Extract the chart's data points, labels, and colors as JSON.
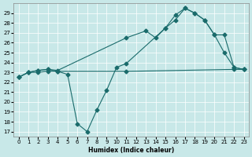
{
  "xlabel": "Humidex (Indice chaleur)",
  "bg_color": "#c8e8e8",
  "line_color": "#1a6b6b",
  "xlim": [
    -0.5,
    23.5
  ],
  "ylim": [
    16.5,
    30.0
  ],
  "xticks": [
    0,
    1,
    2,
    3,
    4,
    5,
    6,
    7,
    8,
    9,
    10,
    11,
    12,
    13,
    14,
    15,
    16,
    17,
    18,
    19,
    20,
    21,
    22,
    23
  ],
  "yticks": [
    17,
    18,
    19,
    20,
    21,
    22,
    23,
    24,
    25,
    26,
    27,
    28,
    29
  ],
  "series_flat_x": [
    0,
    1,
    2,
    3,
    4,
    11,
    22,
    23
  ],
  "series_flat_y": [
    22.5,
    23.0,
    23.0,
    23.1,
    23.1,
    23.1,
    23.3,
    23.3
  ],
  "series_high_x": [
    0,
    1,
    2,
    3,
    4,
    11,
    13,
    14,
    15,
    16,
    17,
    18,
    19,
    20,
    21,
    22,
    23
  ],
  "series_high_y": [
    22.5,
    23.0,
    23.2,
    23.3,
    23.2,
    26.5,
    27.2,
    26.5,
    27.5,
    28.3,
    29.5,
    29.0,
    28.3,
    26.8,
    26.8,
    23.5,
    23.3
  ],
  "series_dip_x": [
    0,
    1,
    2,
    3,
    4,
    5,
    6,
    7,
    8,
    9,
    10,
    11,
    15,
    16,
    17,
    18,
    19,
    20,
    21,
    22,
    23
  ],
  "series_dip_y": [
    22.5,
    23.0,
    23.2,
    23.3,
    23.1,
    22.8,
    17.8,
    17.0,
    19.2,
    21.2,
    23.5,
    23.9,
    27.5,
    28.8,
    29.5,
    29.0,
    28.3,
    26.8,
    25.0,
    23.5,
    23.3
  ]
}
